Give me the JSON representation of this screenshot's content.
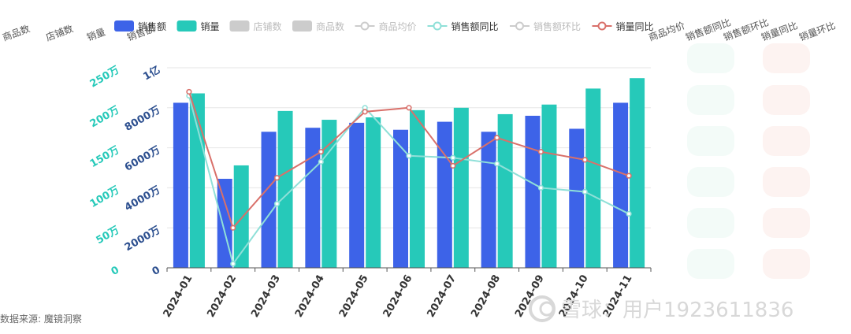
{
  "table_headers_left": [
    "商品数",
    "店铺数",
    "销量",
    "销售额"
  ],
  "table_headers_right": [
    "商品均价",
    "销售额同比",
    "销售额环比",
    "销量同比",
    "销量环比"
  ],
  "source": "数据来源: 魔镜洞察",
  "watermark": "雪球：用户1923611836",
  "colors": {
    "sales_amount": "#3d63e8",
    "sales_volume": "#26c9b9",
    "disabled": "#cccccc",
    "amount_yoy": "#8fe0d8",
    "volume_yoy": "#d9706a",
    "left_axis": "#2c4f8f",
    "right_axis": "#26c9b9"
  },
  "chart_data": {
    "type": "bar",
    "categories": [
      "2024-01",
      "2024-02",
      "2024-03",
      "2024-04",
      "2024-05",
      "2024-06",
      "2024-07",
      "2024-08",
      "2024-09",
      "2024-10",
      "2024-11"
    ],
    "legend": [
      {
        "name": "销售额",
        "kind": "bar",
        "active": true,
        "color": "#3d63e8"
      },
      {
        "name": "销量",
        "kind": "bar",
        "active": true,
        "color": "#26c9b9"
      },
      {
        "name": "店铺数",
        "kind": "bar",
        "active": false,
        "color": "#cccccc"
      },
      {
        "name": "商品数",
        "kind": "bar",
        "active": false,
        "color": "#cccccc"
      },
      {
        "name": "商品均价",
        "kind": "line",
        "active": false,
        "color": "#cccccc"
      },
      {
        "name": "销售额同比",
        "kind": "line",
        "active": true,
        "color": "#8fe0d8"
      },
      {
        "name": "销售额环比",
        "kind": "line",
        "active": false,
        "color": "#cccccc"
      },
      {
        "name": "销量同比",
        "kind": "line",
        "active": true,
        "color": "#d9706a"
      }
    ],
    "series": [
      {
        "name": "销售额",
        "axis": "left",
        "type": "bar",
        "values": [
          82500000,
          44500000,
          68000000,
          70000000,
          72500000,
          69000000,
          73000000,
          68000000,
          76000000,
          69500000,
          82500000
        ]
      },
      {
        "name": "销量",
        "axis": "right",
        "type": "bar",
        "values": [
          2180000,
          1280000,
          1960000,
          1850000,
          1880000,
          1970000,
          2000000,
          1920000,
          2040000,
          2240000,
          2370000
        ]
      },
      {
        "name": "销售额同比",
        "axis": "hidden",
        "type": "line",
        "values": [
          0.86,
          0.02,
          0.32,
          0.53,
          0.8,
          0.56,
          0.55,
          0.52,
          0.4,
          0.38,
          0.27
        ]
      },
      {
        "name": "销量同比",
        "axis": "hidden",
        "type": "line",
        "values": [
          0.88,
          0.2,
          0.45,
          0.58,
          0.78,
          0.8,
          0.51,
          0.65,
          0.58,
          0.54,
          0.46
        ]
      }
    ],
    "left_axis": {
      "ticks": [
        "0",
        "2000万",
        "4000万",
        "6000万",
        "8000万",
        "1亿"
      ],
      "values": [
        0,
        20000000,
        40000000,
        60000000,
        80000000,
        100000000
      ],
      "ylim": [
        0,
        100000000
      ]
    },
    "right_axis": {
      "ticks": [
        "0",
        "50万",
        "100万",
        "150万",
        "200万",
        "250万"
      ],
      "values": [
        0,
        500000,
        1000000,
        1500000,
        2000000,
        2500000
      ],
      "ylim": [
        0,
        2500000
      ]
    },
    "hidden_axis_ylim": [
      0,
      1
    ],
    "grid": true,
    "legend_position": "top"
  }
}
